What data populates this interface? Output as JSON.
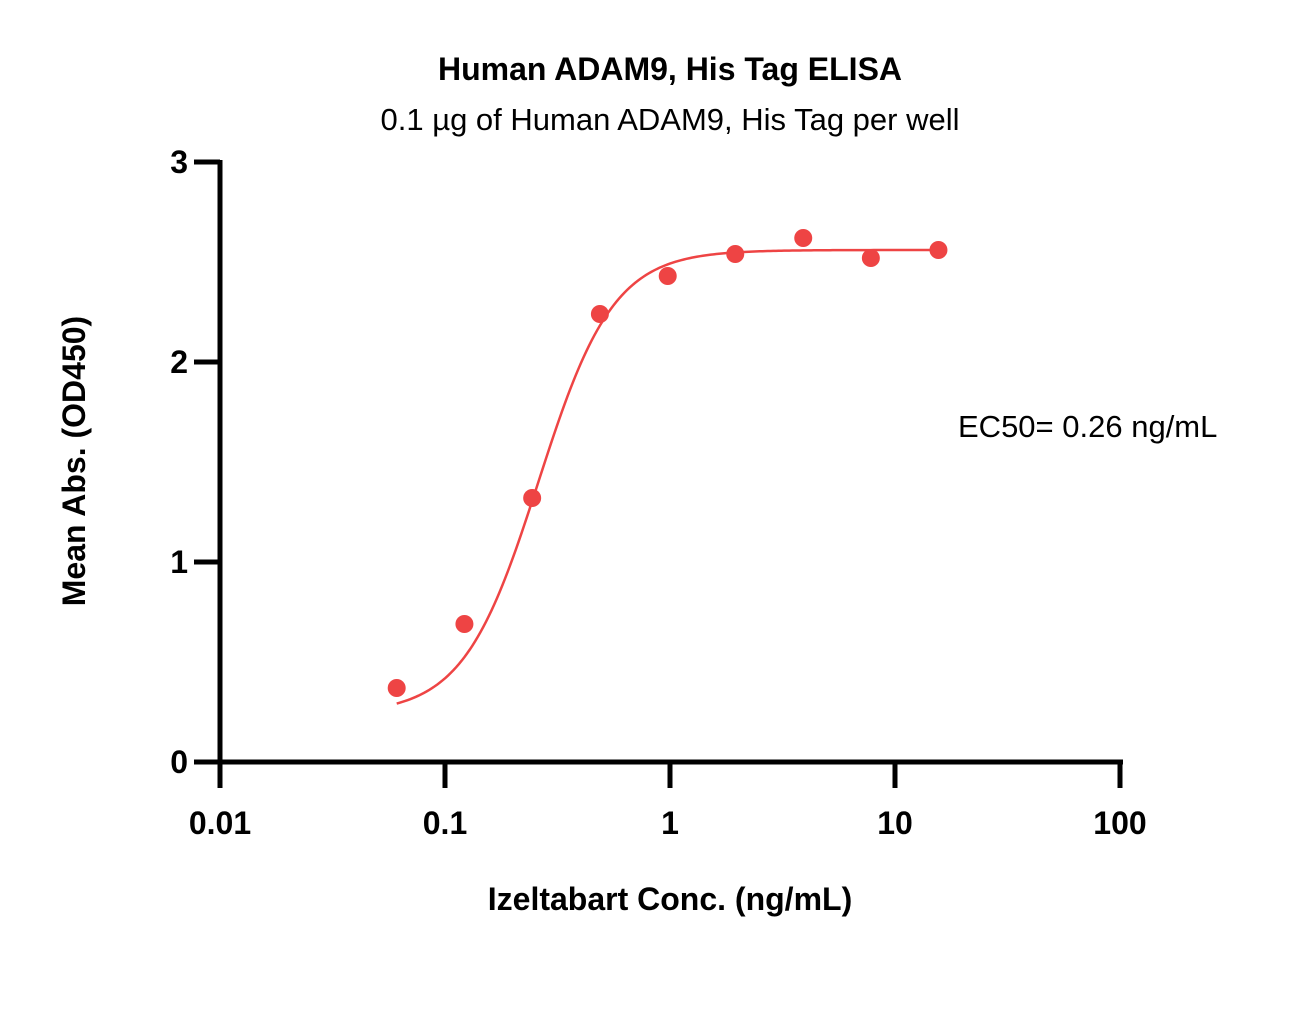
{
  "chart_data": {
    "type": "scatter",
    "title": "Human ADAM9, His Tag ELISA",
    "subtitle": "0.1 µg of Human ADAM9, His Tag per well",
    "xlabel": "Izeltabart Conc. (ng/mL)",
    "ylabel": "Mean Abs. (OD450)",
    "x_scale": "log",
    "xlim": [
      0.01,
      100
    ],
    "ylim": [
      0,
      3
    ],
    "x_ticks": [
      {
        "value": 0.01,
        "label": "0.01"
      },
      {
        "value": 0.1,
        "label": "0.1"
      },
      {
        "value": 1,
        "label": "1"
      },
      {
        "value": 10,
        "label": "10"
      },
      {
        "value": 100,
        "label": "100"
      }
    ],
    "y_ticks": [
      {
        "value": 0,
        "label": "0"
      },
      {
        "value": 1,
        "label": "1"
      },
      {
        "value": 2,
        "label": "2"
      },
      {
        "value": 3,
        "label": "3"
      }
    ],
    "grid": false,
    "series": [
      {
        "color": "#ee4444",
        "points": [
          {
            "x": 0.061,
            "y": 0.37
          },
          {
            "x": 0.122,
            "y": 0.69
          },
          {
            "x": 0.244,
            "y": 1.32
          },
          {
            "x": 0.488,
            "y": 2.24
          },
          {
            "x": 0.977,
            "y": 2.43
          },
          {
            "x": 1.95,
            "y": 2.54
          },
          {
            "x": 3.91,
            "y": 2.62
          },
          {
            "x": 7.81,
            "y": 2.52
          },
          {
            "x": 15.6,
            "y": 2.56
          }
        ],
        "fit": {
          "model": "4PL",
          "bottom": 0.24,
          "top": 2.56,
          "ec50": 0.26,
          "hill": 2.6,
          "x_range": [
            0.061,
            15.6
          ]
        }
      }
    ],
    "annotations": [
      {
        "text": "EC50= 0.26 ng/mL"
      }
    ]
  }
}
